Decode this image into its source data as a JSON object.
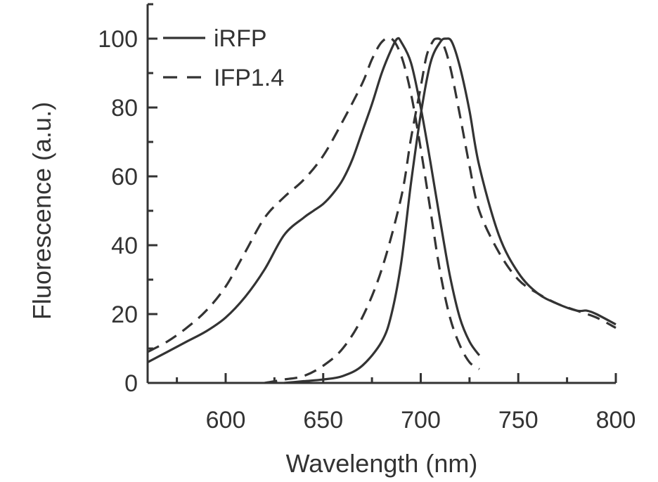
{
  "chart_data": {
    "type": "line",
    "title": "",
    "xlabel": "Wavelength (nm)",
    "ylabel": "Fluorescence (a.u.)",
    "xlim": [
      560,
      800
    ],
    "ylim": [
      0,
      110
    ],
    "xticks": [
      600,
      650,
      700,
      750,
      800
    ],
    "yticks": [
      0,
      20,
      40,
      60,
      80,
      100
    ],
    "grid": false,
    "legend": {
      "position": "top-left"
    },
    "series": [
      {
        "name": "iRFP",
        "style": "solid",
        "color": "#333333",
        "curves": [
          {
            "x": [
              560,
              570,
              580,
              590,
              600,
              610,
              620,
              630,
              640,
              645,
              650,
              655,
              660,
              665,
              670,
              675,
              680,
              685,
              688,
              690,
              695,
              700,
              705,
              710,
              715,
              720,
              725,
              730
            ],
            "y": [
              6,
              9,
              12,
              15,
              19,
              25,
              33,
              43,
              48,
              50,
              52,
              55,
              59,
              65,
              73,
              81,
              90,
              97,
              100,
              99,
              93,
              80,
              64,
              47,
              31,
              19,
              12,
              8
            ]
          },
          {
            "x": [
              630,
              640,
              650,
              660,
              670,
              680,
              685,
              690,
              695,
              700,
              705,
              710,
              713,
              716,
              720,
              725,
              730,
              740,
              750,
              760,
              770,
              780,
              785,
              790,
              800
            ],
            "y": [
              0,
              0.5,
              1,
              2,
              5,
              12,
              20,
              35,
              58,
              78,
              93,
              99,
              100,
              99,
              92,
              79,
              63,
              43,
              32,
              26,
              23,
              21,
              21,
              20,
              17
            ]
          }
        ]
      },
      {
        "name": "IFP1.4",
        "style": "dashed",
        "color": "#333333",
        "curves": [
          {
            "x": [
              560,
              570,
              580,
              590,
              600,
              610,
              620,
              630,
              640,
              650,
              660,
              670,
              675,
              680,
              685,
              690,
              695,
              700,
              705,
              710,
              715,
              720,
              725,
              730
            ],
            "y": [
              9,
              12,
              16,
              21,
              28,
              38,
              48,
              54,
              59,
              66,
              76,
              87,
              94,
              99,
              100,
              95,
              84,
              68,
              50,
              32,
              19,
              11,
              6,
              4
            ]
          },
          {
            "x": [
              620,
              630,
              640,
              650,
              660,
              670,
              680,
              690,
              695,
              700,
              703,
              706,
              708,
              711,
              715,
              720,
              725,
              730,
              740,
              750,
              760,
              770,
              780,
              790,
              800
            ],
            "y": [
              0,
              1,
              2,
              5,
              10,
              19,
              33,
              54,
              71,
              86,
              95,
              99,
              100,
              99,
              92,
              78,
              63,
              50,
              38,
              30,
              26,
              23,
              21,
              19,
              16
            ]
          }
        ]
      }
    ]
  }
}
